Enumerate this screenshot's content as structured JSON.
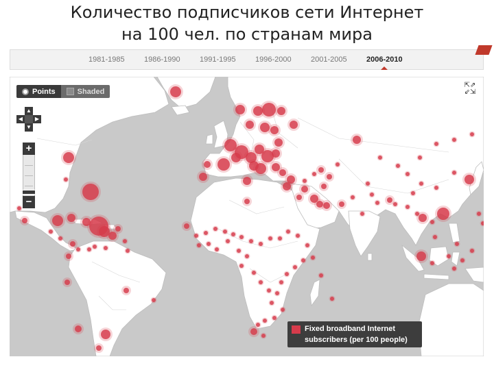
{
  "slide": {
    "title_line1": "Количество подписчиков сети Интернет",
    "title_line2": "на 100 чел. по странам мира"
  },
  "timeline": {
    "periods": [
      "1981-1985",
      "1986-1990",
      "1991-1995",
      "1996-2000",
      "2001-2005",
      "2006-2010"
    ],
    "active": "2006-2010"
  },
  "view_toggle": {
    "points_label": "Points",
    "shaded_label": "Shaded",
    "selected": "Points"
  },
  "map_controls": {
    "pan_up_icon": "arrow-up-icon",
    "pan_down_icon": "arrow-down-icon",
    "pan_left_icon": "arrow-left-icon",
    "pan_right_icon": "arrow-right-icon",
    "zoom_in_label": "+",
    "zoom_out_label": "−",
    "fullscreen_icon": "expand-arrows-icon"
  },
  "legend": {
    "line1": "Fixed broadband Internet",
    "line2": "subscribers (per 100 people)"
  },
  "colors": {
    "marker": "#d63b4b",
    "land": "#ffffff",
    "ocean": "#c9c9c9",
    "controls": "#3a3a3a",
    "accent": "#c0392b"
  }
}
